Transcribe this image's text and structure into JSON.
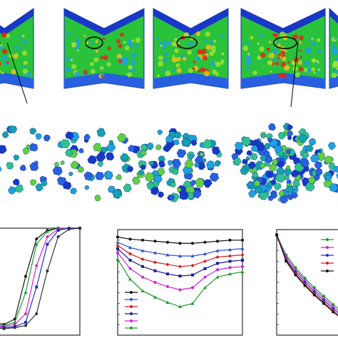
{
  "chart_data": [
    {
      "type": "line",
      "x": [
        0,
        1,
        2,
        3,
        4,
        5,
        6,
        7,
        8,
        9,
        10
      ],
      "xlim": [
        0,
        10
      ],
      "ylim": [
        0,
        1
      ],
      "series": [
        {
          "color": "#111111",
          "values": [
            0.2,
            0.15,
            0.12,
            0.1,
            0.15,
            0.55,
            0.9,
            0.98,
            1,
            1,
            1
          ]
        },
        {
          "color": "#1a9a2a",
          "values": [
            0.18,
            0.13,
            0.1,
            0.09,
            0.12,
            0.4,
            0.85,
            0.97,
            1,
            1,
            1
          ]
        },
        {
          "color": "#d020d0",
          "values": [
            0.16,
            0.12,
            0.09,
            0.08,
            0.1,
            0.2,
            0.65,
            0.92,
            0.99,
            1,
            1
          ]
        },
        {
          "color": "#2030c0",
          "values": [
            0.14,
            0.1,
            0.08,
            0.07,
            0.08,
            0.12,
            0.45,
            0.85,
            0.98,
            1,
            1
          ]
        },
        {
          "color": "#333333",
          "values": [
            0.12,
            0.09,
            0.07,
            0.06,
            0.07,
            0.09,
            0.2,
            0.6,
            0.92,
            0.99,
            1
          ]
        }
      ]
    },
    {
      "type": "line",
      "x": [
        0,
        1,
        2,
        3,
        4,
        5,
        6,
        7,
        8,
        9,
        10
      ],
      "xlim": [
        0,
        10
      ],
      "ylim": [
        0,
        1
      ],
      "series": [
        {
          "color": "#111111",
          "values": [
            0.93,
            0.91,
            0.9,
            0.89,
            0.88,
            0.87,
            0.87,
            0.88,
            0.89,
            0.9,
            0.9
          ]
        },
        {
          "color": "#2b50d0",
          "values": [
            0.88,
            0.83,
            0.8,
            0.78,
            0.76,
            0.75,
            0.75,
            0.77,
            0.8,
            0.81,
            0.82
          ]
        },
        {
          "color": "#d02020",
          "values": [
            0.85,
            0.77,
            0.72,
            0.69,
            0.67,
            0.65,
            0.66,
            0.7,
            0.74,
            0.75,
            0.76
          ]
        },
        {
          "color": "#1a1aa0",
          "values": [
            0.82,
            0.71,
            0.65,
            0.61,
            0.58,
            0.56,
            0.57,
            0.63,
            0.68,
            0.7,
            0.71
          ]
        },
        {
          "color": "#d020d0",
          "values": [
            0.78,
            0.63,
            0.55,
            0.5,
            0.46,
            0.43,
            0.45,
            0.55,
            0.62,
            0.64,
            0.65
          ]
        },
        {
          "color": "#1a9a2a",
          "values": [
            0.72,
            0.53,
            0.42,
            0.36,
            0.31,
            0.27,
            0.3,
            0.45,
            0.55,
            0.58,
            0.6
          ]
        }
      ]
    },
    {
      "type": "line",
      "x": [
        0,
        0.5,
        1,
        1.5,
        2,
        2.5,
        3,
        3.5,
        4,
        4.5,
        5
      ],
      "xlim": [
        0,
        5
      ],
      "ylim": [
        0,
        1
      ],
      "series": [
        {
          "color": "#1a9a2a",
          "values": [
            0.95,
            0.76,
            0.64,
            0.54,
            0.45,
            0.37,
            0.29,
            0.22,
            0.16,
            0.1,
            0.05
          ]
        },
        {
          "color": "#d020d0",
          "values": [
            0.95,
            0.74,
            0.62,
            0.52,
            0.43,
            0.35,
            0.27,
            0.2,
            0.14,
            0.08,
            0.03
          ]
        },
        {
          "color": "#2030c0",
          "values": [
            0.95,
            0.72,
            0.6,
            0.5,
            0.41,
            0.33,
            0.25,
            0.18,
            0.12,
            0.06,
            0.02
          ]
        },
        {
          "color": "#d02020",
          "values": [
            0.95,
            0.71,
            0.58,
            0.48,
            0.39,
            0.31,
            0.23,
            0.16,
            0.1,
            0.05,
            0.01
          ]
        },
        {
          "color": "#111111",
          "values": [
            0.95,
            0.7,
            0.57,
            0.47,
            0.38,
            0.3,
            0.22,
            0.15,
            0.09,
            0.04,
            0.0
          ]
        }
      ]
    }
  ]
}
